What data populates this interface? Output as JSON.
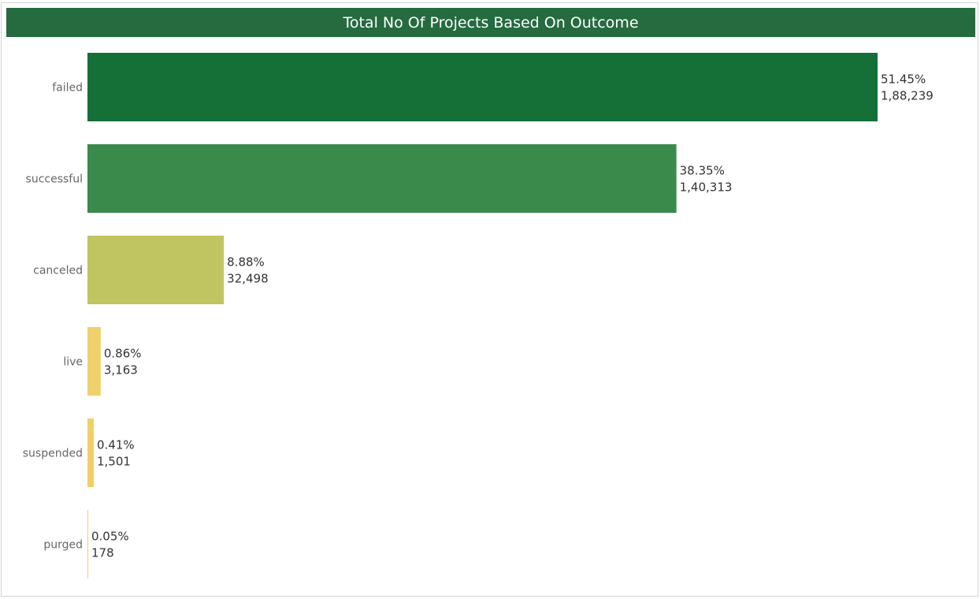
{
  "chart_data": {
    "type": "bar",
    "orientation": "horizontal",
    "title": "Total No Of Projects Based On Outcome",
    "categories": [
      "failed",
      "successful",
      "canceled",
      "live",
      "suspended",
      "purged"
    ],
    "values": [
      188239,
      140313,
      32498,
      3163,
      1501,
      178
    ],
    "value_labels": [
      "1,88,239",
      "1,40,313",
      "32,498",
      "3,163",
      "1,501",
      "178"
    ],
    "percent_labels": [
      "51.45%",
      "38.35%",
      "8.88%",
      "0.86%",
      "0.41%",
      "0.05%"
    ],
    "colors": [
      "#157038",
      "#3a8a4c",
      "#c0c561",
      "#f0d06a",
      "#f0d06a",
      "#f0d06a"
    ],
    "xlim": [
      0,
      188239
    ],
    "grid": false,
    "legend": "none"
  },
  "colors": {
    "title_bar": "#256b3f",
    "title_text": "#ffffff"
  }
}
